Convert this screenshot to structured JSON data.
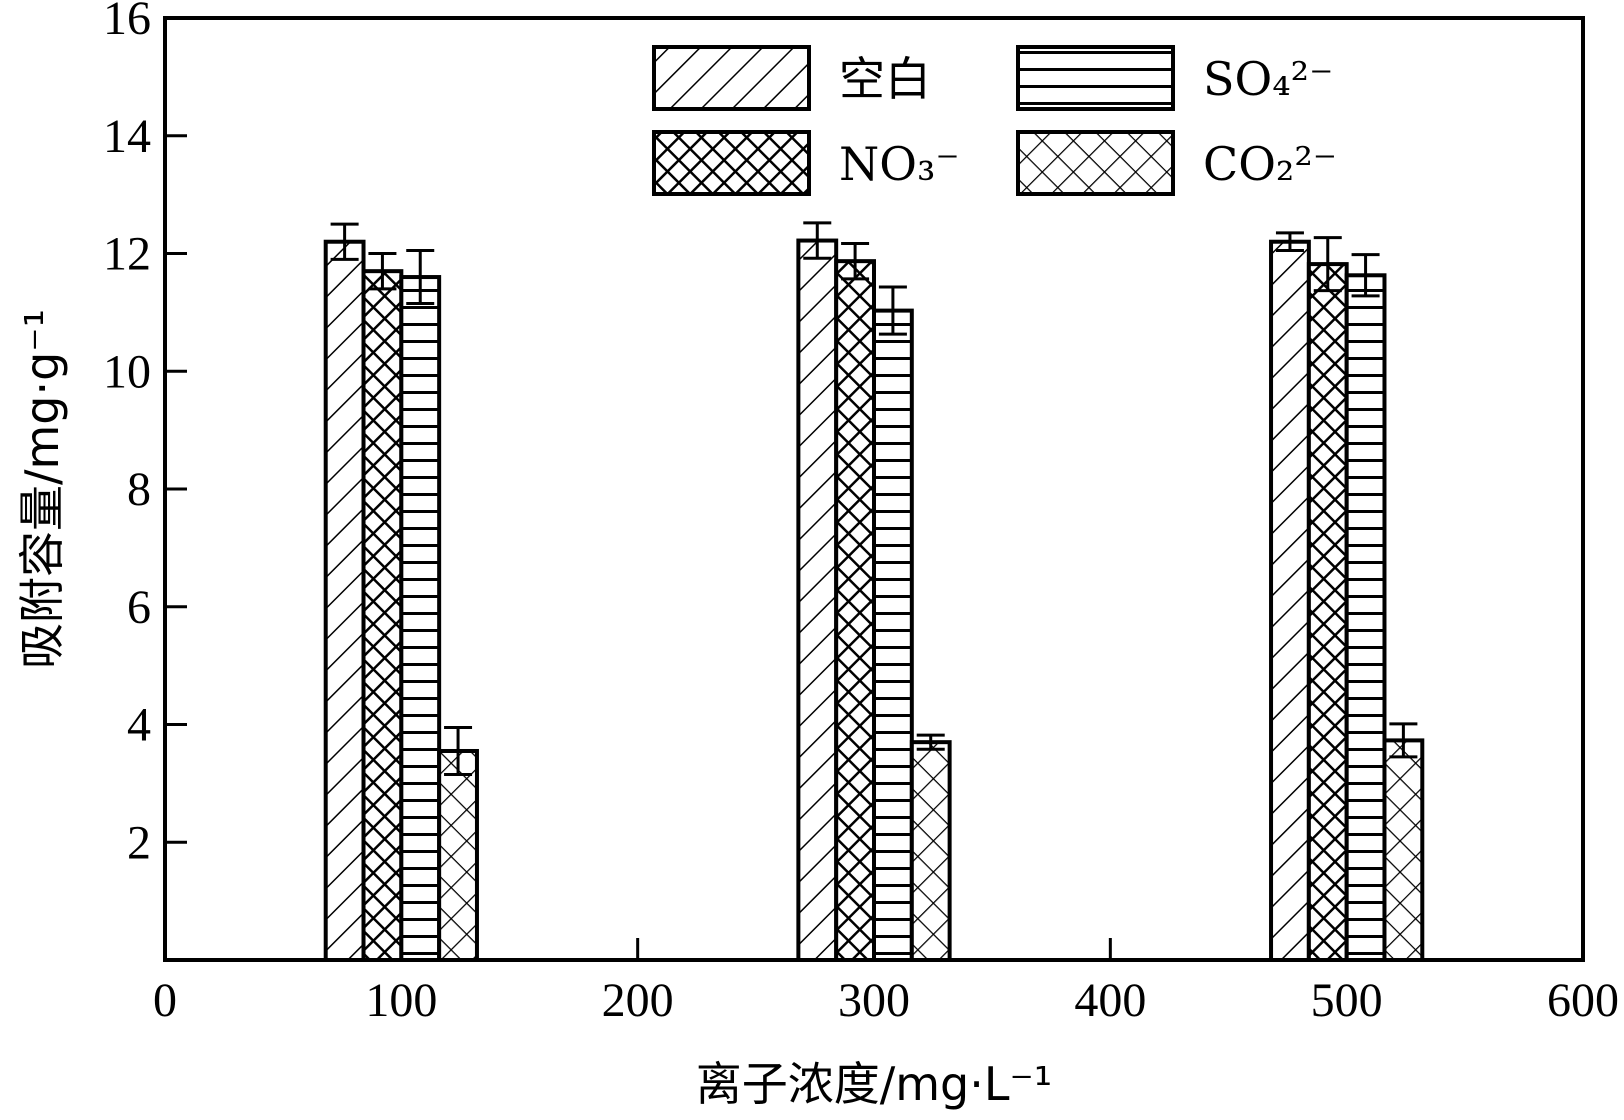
{
  "chart_data": {
    "type": "bar",
    "xlabel": "离子浓度/mg·L⁻¹",
    "ylabel": "吸附容量/mg·g⁻¹",
    "xlim": [
      0,
      600
    ],
    "ylim": [
      0,
      16
    ],
    "xticks": [
      0,
      100,
      200,
      300,
      400,
      500,
      600
    ],
    "yticks": [
      2,
      4,
      6,
      8,
      10,
      12,
      14,
      16
    ],
    "grid": false,
    "legend_position": "top-right",
    "groups": [
      100,
      300,
      500
    ],
    "series": [
      {
        "name": "空白",
        "pattern": "diagonal-hatch",
        "values": [
          12.2,
          12.22,
          12.2
        ],
        "errors": [
          0.3,
          0.3,
          0.15
        ]
      },
      {
        "name": "NO₃⁻",
        "pattern": "dense-crosshatch",
        "values": [
          11.7,
          11.87,
          11.82
        ],
        "errors": [
          0.3,
          0.3,
          0.45
        ]
      },
      {
        "name": "SO₄²⁻",
        "pattern": "horizontal-lines",
        "values": [
          11.6,
          11.03,
          11.63
        ],
        "errors": [
          0.45,
          0.4,
          0.35
        ]
      },
      {
        "name": "CO₂²⁻",
        "pattern": "open-crosshatch",
        "values": [
          3.55,
          3.7,
          3.73
        ],
        "errors": [
          0.4,
          0.12,
          0.28
        ]
      }
    ]
  }
}
